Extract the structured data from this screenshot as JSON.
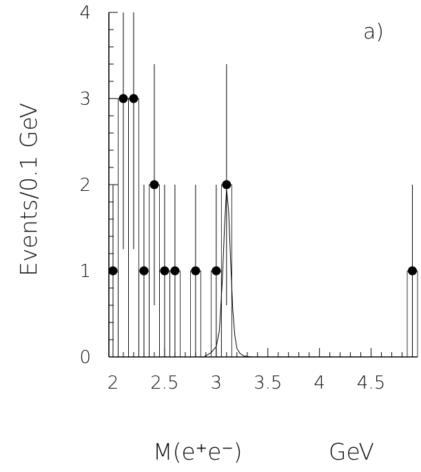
{
  "chart_data": {
    "type": "scatter",
    "title": "",
    "panel_label": "a)",
    "xlabel": "M(e⁺e⁻)",
    "xlabel_unit": "GeV",
    "ylabel": "Events/0.1 GeV",
    "xlim": [
      1.96,
      4.95
    ],
    "ylim": [
      0,
      4
    ],
    "x_tick_labels": [
      "2",
      "2.5",
      "3",
      "3.5",
      "4",
      "4.5"
    ],
    "y_tick_labels": [
      "0",
      "1",
      "2",
      "3",
      "4"
    ],
    "x_ticks": [
      2,
      2.5,
      3,
      3.5,
      4,
      4.5
    ],
    "y_ticks": [
      0,
      1,
      2,
      3,
      4
    ],
    "grid": false,
    "bin_width": 0.1,
    "series": [
      {
        "kind": "data-points-with-errors",
        "x": [
          2.0,
          2.1,
          2.2,
          2.3,
          2.4,
          2.5,
          2.6,
          2.8,
          3.0,
          3.1,
          4.9
        ],
        "y": [
          1,
          3,
          3,
          1,
          2,
          1,
          1,
          1,
          1,
          2,
          1
        ],
        "y_err": [
          1,
          1.75,
          1.75,
          1,
          1.4,
          1,
          1,
          1,
          1,
          1.4,
          1
        ]
      },
      {
        "kind": "fit-curve",
        "x": [
          2.88,
          2.95,
          3.0,
          3.03,
          3.06,
          3.08,
          3.1,
          3.12,
          3.14,
          3.16,
          3.18,
          3.2,
          3.23,
          3.27,
          3.35
        ],
        "y": [
          0,
          0.05,
          0.12,
          0.3,
          0.9,
          1.5,
          1.95,
          1.7,
          1.1,
          0.55,
          0.25,
          0.1,
          0.04,
          0.01,
          0
        ]
      }
    ]
  }
}
